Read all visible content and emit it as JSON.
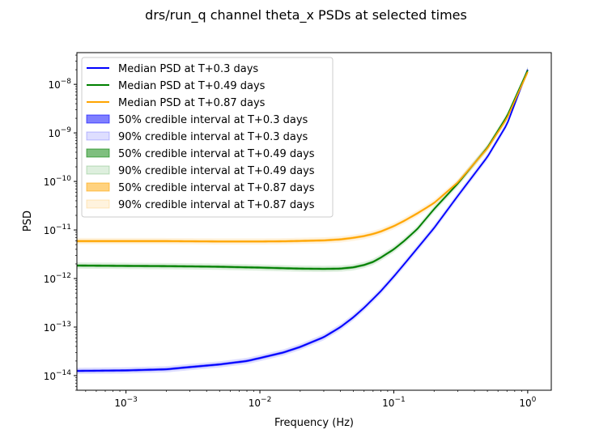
{
  "chart_data": {
    "type": "line",
    "title": "drs/run_q channel theta_x PSDs at selected times",
    "xlabel": "Frequency (Hz)",
    "ylabel": "PSD",
    "xscale": "log",
    "yscale": "log",
    "xlim": [
      0.00043,
      1.5
    ],
    "ylim": [
      5e-15,
      4.5e-08
    ],
    "grid": false,
    "legend_position": "top-left",
    "x_ticks": [
      {
        "value": 0.001,
        "base": "10",
        "exp": "−3"
      },
      {
        "value": 0.01,
        "base": "10",
        "exp": "−2"
      },
      {
        "value": 0.1,
        "base": "10",
        "exp": "−1"
      },
      {
        "value": 1,
        "base": "10",
        "exp": "0"
      }
    ],
    "y_ticks": [
      {
        "value": 1e-14,
        "base": "10",
        "exp": "−14"
      },
      {
        "value": 1e-13,
        "base": "10",
        "exp": "−13"
      },
      {
        "value": 1e-12,
        "base": "10",
        "exp": "−12"
      },
      {
        "value": 1e-11,
        "base": "10",
        "exp": "−11"
      },
      {
        "value": 1e-10,
        "base": "10",
        "exp": "−10"
      },
      {
        "value": 1e-09,
        "base": "10",
        "exp": "−9"
      },
      {
        "value": 1e-08,
        "base": "10",
        "exp": "−8"
      }
    ],
    "x": [
      0.00043,
      0.001,
      0.002,
      0.003,
      0.005,
      0.008,
      0.01,
      0.015,
      0.02,
      0.03,
      0.04,
      0.05,
      0.06,
      0.07,
      0.08,
      0.1,
      0.12,
      0.15,
      0.2,
      0.3,
      0.5,
      0.7,
      1.0
    ],
    "series": [
      {
        "name": "Median PSD at T+0.3 days",
        "color": "#0000ff",
        "values": [
          1.25e-14,
          1.28e-14,
          1.35e-14,
          1.5e-14,
          1.7e-14,
          2e-14,
          2.3e-14,
          3e-14,
          3.9e-14,
          6.2e-14,
          1e-13,
          1.6e-13,
          2.5e-13,
          3.8e-13,
          5.5e-13,
          1.1e-12,
          2e-12,
          4.2e-12,
          1.1e-11,
          5e-11,
          3.2e-10,
          1.5e-09,
          2e-08
        ],
        "band50": {
          "label": "50% credible interval at T+0.3 days",
          "color": "#0000ff",
          "opacity": 0.5,
          "ratio": 1.06
        },
        "band90": {
          "label": "90% credible interval at T+0.3 days",
          "color": "#0000ff",
          "opacity": 0.13,
          "ratio": 1.16
        }
      },
      {
        "name": "Median PSD at T+0.49 days",
        "color": "#008000",
        "values": [
          1.85e-12,
          1.82e-12,
          1.8e-12,
          1.78e-12,
          1.75e-12,
          1.7e-12,
          1.68e-12,
          1.63e-12,
          1.6e-12,
          1.58e-12,
          1.6e-12,
          1.7e-12,
          1.9e-12,
          2.2e-12,
          2.7e-12,
          4e-12,
          6e-12,
          1.05e-11,
          2.7e-11,
          9e-11,
          5e-10,
          2.2e-09,
          1.95e-08
        ],
        "band50": {
          "label": "50% credible interval at T+0.49 days",
          "color": "#008000",
          "opacity": 0.5,
          "ratio": 1.06
        },
        "band90": {
          "label": "90% credible interval at T+0.49 days",
          "color": "#008000",
          "opacity": 0.13,
          "ratio": 1.16
        }
      },
      {
        "name": "Median PSD at T+0.87 days",
        "color": "#ffa500",
        "values": [
          5.9e-12,
          5.9e-12,
          5.9e-12,
          5.85e-12,
          5.8e-12,
          5.8e-12,
          5.8e-12,
          5.85e-12,
          5.95e-12,
          6.1e-12,
          6.4e-12,
          6.9e-12,
          7.5e-12,
          8.3e-12,
          9.3e-12,
          1.2e-11,
          1.55e-11,
          2.2e-11,
          3.6e-11,
          9.5e-11,
          4.8e-10,
          2e-09,
          1.8e-08
        ],
        "band50": {
          "label": "50% credible interval at T+0.87 days",
          "color": "#ffa500",
          "opacity": 0.5,
          "ratio": 1.06
        },
        "band90": {
          "label": "90% credible interval at T+0.87 days",
          "color": "#ffa500",
          "opacity": 0.13,
          "ratio": 1.16
        }
      }
    ],
    "legend_order": [
      {
        "kind": "line",
        "label": "Median PSD at T+0.3 days",
        "color": "#0000ff"
      },
      {
        "kind": "line",
        "label": "Median PSD at T+0.49 days",
        "color": "#008000"
      },
      {
        "kind": "line",
        "label": "Median PSD at T+0.87 days",
        "color": "#ffa500"
      },
      {
        "kind": "patch",
        "label": "50% credible interval at T+0.3 days",
        "color": "#0000ff",
        "opacity": 0.5
      },
      {
        "kind": "patch",
        "label": "90% credible interval at T+0.3 days",
        "color": "#0000ff",
        "opacity": 0.13
      },
      {
        "kind": "patch",
        "label": "50% credible interval at T+0.49 days",
        "color": "#008000",
        "opacity": 0.5
      },
      {
        "kind": "patch",
        "label": "90% credible interval at T+0.49 days",
        "color": "#008000",
        "opacity": 0.13
      },
      {
        "kind": "patch",
        "label": "50% credible interval at T+0.87 days",
        "color": "#ffa500",
        "opacity": 0.5
      },
      {
        "kind": "patch",
        "label": "90% credible interval at T+0.87 days",
        "color": "#ffa500",
        "opacity": 0.13
      }
    ]
  }
}
